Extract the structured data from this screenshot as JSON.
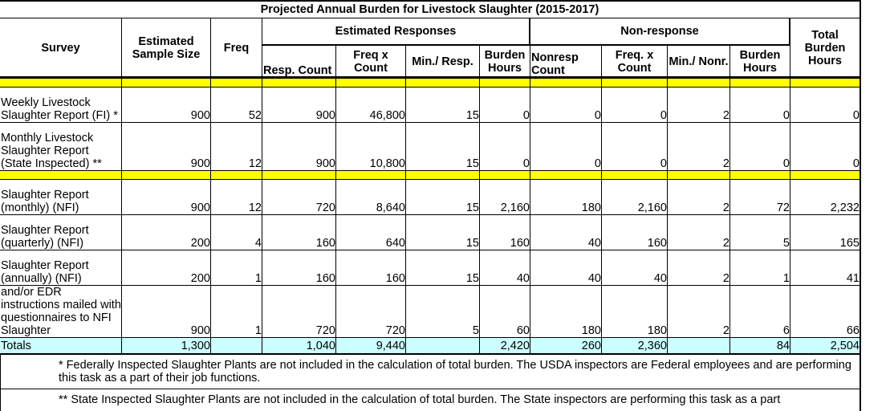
{
  "title": "Projected Annual Burden for Livestock Slaughter (2015-2017)",
  "headers": {
    "survey": "Survey",
    "sample_size": "Estimated Sample Size",
    "freq": "Freq",
    "responses": "Estimated Responses",
    "nonresponse": "Non-response",
    "total": "Total Burden Hours",
    "sub": [
      "Resp. Count",
      "Freq x Count",
      "Min./ Resp.",
      "Burden Hours",
      "Nonresp Count",
      "Freq. x Count",
      "Min./ Nonr.",
      "Burden Hours"
    ]
  },
  "rows": [
    {
      "survey": "Weekly Livestock Slaughter Report (FI) *",
      "cells": [
        "900",
        "52",
        "900",
        "46,800",
        "15",
        "0",
        "0",
        "0",
        "2",
        "0",
        "0"
      ]
    },
    {
      "survey": "Monthly Livestock Slaughter Report (State Inspected) **",
      "cells": [
        "900",
        "12",
        "900",
        "10,800",
        "15",
        "0",
        "0",
        "0",
        "2",
        "0",
        "0"
      ]
    },
    {
      "survey": "Slaughter Report (monthly) (NFI)",
      "cells": [
        "900",
        "12",
        "720",
        "8,640",
        "15",
        "2,160",
        "180",
        "2,160",
        "2",
        "72",
        "2,232"
      ]
    },
    {
      "survey": "Slaughter Report (quarterly) (NFI)",
      "cells": [
        "200",
        "4",
        "160",
        "640",
        "15",
        "160",
        "40",
        "160",
        "2",
        "5",
        "165"
      ]
    },
    {
      "survey": "Slaughter Report (annually) (NFI)",
      "cells": [
        "200",
        "1",
        "160",
        "160",
        "15",
        "40",
        "40",
        "40",
        "2",
        "1",
        "41"
      ]
    },
    {
      "survey": "and/or EDR instructions mailed with questionnaires to NFI Slaughter",
      "cells": [
        "900",
        "1",
        "720",
        "720",
        "5",
        "60",
        "180",
        "180",
        "2",
        "6",
        "66"
      ]
    }
  ],
  "totals": {
    "label": "Totals",
    "cells": [
      "1,300",
      null,
      "1,040",
      "9,440",
      null,
      "2,420",
      "260",
      "2,360",
      null,
      "84",
      "2,504"
    ]
  },
  "footnotes": [
    "* Federally Inspected Slaughter Plants are not included in the calculation of total burden.  The USDA inspectors are Federal employees and are performing this task as a part of their job functions.",
    "** State Inspected Slaughter Plants are not included in the calculation of total burden.  The State inspectors are performing this task as a part"
  ]
}
